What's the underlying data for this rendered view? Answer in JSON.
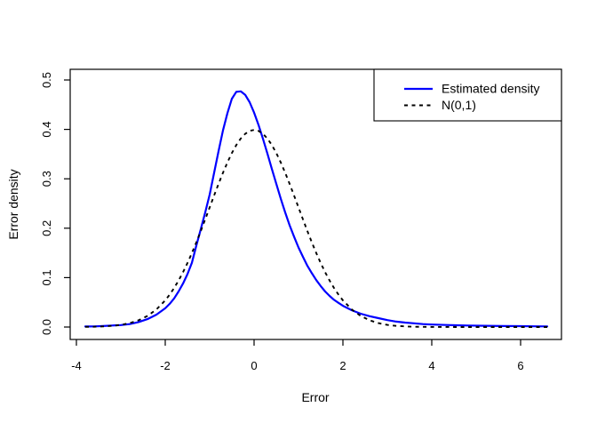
{
  "figure": {
    "background": "#ffffff",
    "plot_border_color": "#000000"
  },
  "axes": {
    "x": {
      "title": "Error",
      "tick_labels": [
        "-4",
        "-2",
        "0",
        "2",
        "4",
        "6"
      ],
      "tick_values": [
        -4,
        -2,
        0,
        2,
        4,
        6
      ]
    },
    "y": {
      "title": "Error density",
      "tick_labels": [
        "0.0",
        "0.1",
        "0.2",
        "0.3",
        "0.4",
        "0.5"
      ],
      "tick_values": [
        0,
        0.1,
        0.2,
        0.3,
        0.4,
        0.5
      ]
    }
  },
  "legend": {
    "position": "topright",
    "items": [
      {
        "label": "Estimated density",
        "color": "#0000ff",
        "style": "solid"
      },
      {
        "label": "N(0,1)",
        "color": "#000000",
        "style": "dashed"
      }
    ]
  },
  "chart_data": {
    "type": "line",
    "title": "",
    "xlabel": "Error",
    "ylabel": "Error density",
    "xlim": [
      -4.14,
      6.92
    ],
    "ylim": [
      -0.025,
      0.522
    ],
    "x_ticks": [
      -4,
      -2,
      0,
      2,
      4,
      6
    ],
    "y_ticks": [
      0,
      0.1,
      0.2,
      0.3,
      0.4,
      0.5
    ],
    "grid": false,
    "legend_position": "topright",
    "series": [
      {
        "name": "Estimated density",
        "color": "#0000ff",
        "style": "solid",
        "peak": {
          "x": -0.35,
          "y": 0.477
        },
        "x": [
          -3.8,
          -3.6,
          -3.4,
          -3.2,
          -3.0,
          -2.8,
          -2.6,
          -2.4,
          -2.2,
          -2.0,
          -1.9,
          -1.8,
          -1.7,
          -1.6,
          -1.5,
          -1.4,
          -1.3,
          -1.2,
          -1.1,
          -1.0,
          -0.9,
          -0.8,
          -0.7,
          -0.6,
          -0.5,
          -0.4,
          -0.3,
          -0.2,
          -0.1,
          0.0,
          0.1,
          0.2,
          0.3,
          0.4,
          0.5,
          0.6,
          0.7,
          0.8,
          0.9,
          1.0,
          1.1,
          1.2,
          1.3,
          1.4,
          1.5,
          1.6,
          1.7,
          1.8,
          1.9,
          2.0,
          2.2,
          2.4,
          2.6,
          2.8,
          3.0,
          3.2,
          3.4,
          3.6,
          3.8,
          4.0,
          4.4,
          4.8,
          5.2,
          5.6,
          6.0,
          6.3,
          6.6
        ],
        "y": [
          0.001,
          0.0013,
          0.002,
          0.003,
          0.004,
          0.006,
          0.01,
          0.016,
          0.025,
          0.038,
          0.047,
          0.058,
          0.072,
          0.088,
          0.107,
          0.13,
          0.165,
          0.198,
          0.232,
          0.268,
          0.312,
          0.356,
          0.398,
          0.433,
          0.462,
          0.476,
          0.477,
          0.47,
          0.455,
          0.434,
          0.409,
          0.381,
          0.351,
          0.32,
          0.29,
          0.26,
          0.232,
          0.206,
          0.183,
          0.161,
          0.142,
          0.124,
          0.109,
          0.095,
          0.083,
          0.072,
          0.063,
          0.055,
          0.049,
          0.043,
          0.034,
          0.027,
          0.022,
          0.018,
          0.014,
          0.011,
          0.009,
          0.0075,
          0.006,
          0.005,
          0.004,
          0.003,
          0.0025,
          0.002,
          0.0018,
          0.0015,
          0.0013
        ]
      },
      {
        "name": "N(0,1)",
        "color": "#000000",
        "style": "dashed",
        "x": [
          -3.8,
          -3.6,
          -3.4,
          -3.2,
          -3.0,
          -2.8,
          -2.6,
          -2.4,
          -2.2,
          -2.0,
          -1.9,
          -1.8,
          -1.7,
          -1.6,
          -1.5,
          -1.4,
          -1.3,
          -1.2,
          -1.1,
          -1.0,
          -0.9,
          -0.8,
          -0.7,
          -0.6,
          -0.5,
          -0.4,
          -0.3,
          -0.2,
          -0.1,
          0.0,
          0.1,
          0.2,
          0.3,
          0.4,
          0.5,
          0.6,
          0.7,
          0.8,
          0.9,
          1.0,
          1.1,
          1.2,
          1.3,
          1.4,
          1.5,
          1.6,
          1.7,
          1.8,
          1.9,
          2.0,
          2.2,
          2.4,
          2.6,
          2.8,
          3.0,
          3.2,
          3.4,
          3.6,
          3.8,
          4.0,
          4.5,
          5.0,
          5.5,
          6.0,
          6.6
        ],
        "y": [
          0.0003,
          0.0006,
          0.0012,
          0.0024,
          0.0044,
          0.0079,
          0.0136,
          0.0224,
          0.0355,
          0.054,
          0.0656,
          0.079,
          0.094,
          0.1109,
          0.1295,
          0.1497,
          0.1714,
          0.1942,
          0.2179,
          0.242,
          0.2661,
          0.2897,
          0.3123,
          0.3332,
          0.3521,
          0.3683,
          0.3814,
          0.391,
          0.397,
          0.3989,
          0.397,
          0.391,
          0.3814,
          0.3683,
          0.3521,
          0.3332,
          0.3123,
          0.2897,
          0.2661,
          0.242,
          0.2179,
          0.1942,
          0.1714,
          0.1497,
          0.1295,
          0.1109,
          0.094,
          0.079,
          0.0656,
          0.054,
          0.0355,
          0.0224,
          0.0136,
          0.0079,
          0.0044,
          0.0024,
          0.0012,
          0.0006,
          0.0003,
          0.0001,
          0.0,
          0.0,
          0.0,
          0.0,
          0.0
        ]
      }
    ]
  }
}
